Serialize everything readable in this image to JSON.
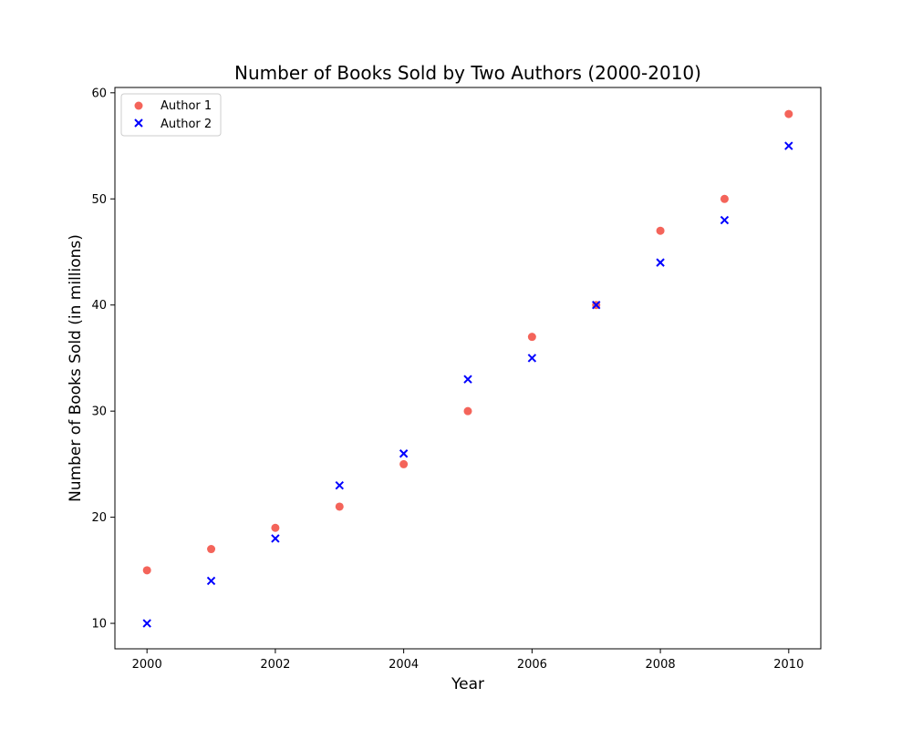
{
  "chart_data": {
    "type": "scatter",
    "title": "Number of Books Sold by Two Authors (2000-2010)",
    "xlabel": "Year",
    "ylabel": "Number of Books Sold (in millions)",
    "x": [
      2000,
      2001,
      2002,
      2003,
      2004,
      2005,
      2006,
      2007,
      2008,
      2009,
      2010
    ],
    "xlim": [
      1999.5,
      2010.5
    ],
    "ylim": [
      7.6,
      60.5
    ],
    "xticks": [
      2000,
      2002,
      2004,
      2006,
      2008,
      2010
    ],
    "yticks": [
      10,
      20,
      30,
      40,
      50,
      60
    ],
    "grid": false,
    "legend_position": "top-left",
    "series": [
      {
        "name": "Author 1",
        "marker": "circle",
        "color": "#f4645a",
        "values": [
          15,
          17,
          19,
          21,
          25,
          30,
          37,
          40,
          47,
          50,
          58
        ]
      },
      {
        "name": "Author 2",
        "marker": "x",
        "color": "#0000ff",
        "values": [
          10,
          14,
          18,
          23,
          26,
          33,
          35,
          40,
          44,
          48,
          55
        ]
      }
    ]
  }
}
